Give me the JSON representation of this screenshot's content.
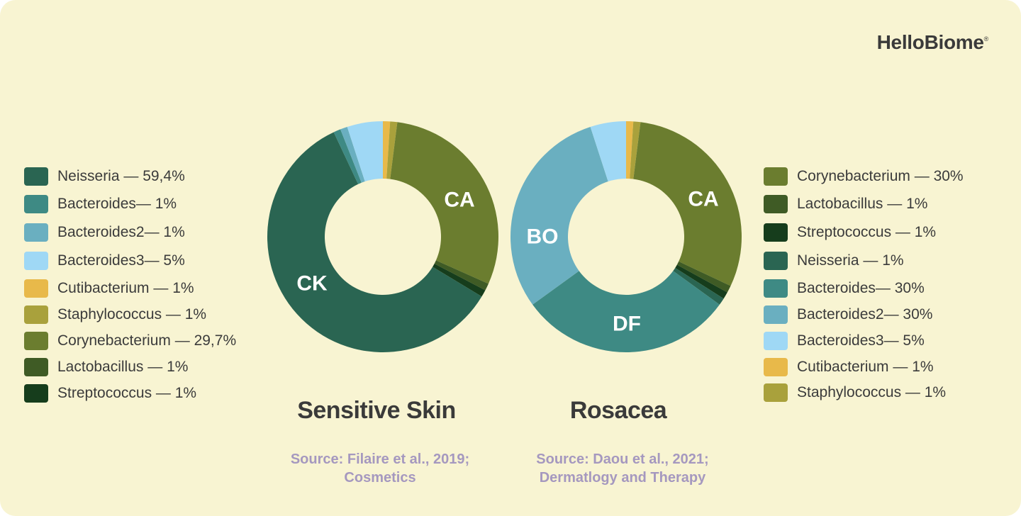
{
  "brand": {
    "name": "HelloBiome",
    "mark": "®"
  },
  "legend_left": [
    {
      "label": "Neisseria — 59,4%",
      "color": "#2a6552"
    },
    {
      "label": "Bacteroides— 1%",
      "color": "#3e8a84"
    },
    {
      "label": "Bacteroides2— 1%",
      "color": "#6aafc0"
    },
    {
      "label": "Bacteroides3— 5%",
      "color": "#9fd8f5"
    },
    {
      "label": "Cutibacterium — 1%",
      "color": "#e8b94a"
    },
    {
      "label": "Staphylococcus  — 1%",
      "color": "#a9a13c"
    },
    {
      "label": "Corynebacterium — 29,7%",
      "color": "#6b7d2f"
    },
    {
      "label": "Lactobacillus — 1%",
      "color": "#3f5b25"
    },
    {
      "label": "Streptococcus — 1%",
      "color": "#163d1c"
    }
  ],
  "legend_right": [
    {
      "label": "Corynebacterium — 30%",
      "color": "#6b7d2f"
    },
    {
      "label": "Lactobacillus — 1%",
      "color": "#3f5b25"
    },
    {
      "label": "Streptococcus — 1%",
      "color": "#163d1c"
    },
    {
      "label": "Neisseria — 1%",
      "color": "#2a6552"
    },
    {
      "label": "Bacteroides— 30%",
      "color": "#3e8a84"
    },
    {
      "label": "Bacteroides2— 30%",
      "color": "#6aafc0"
    },
    {
      "label": "Bacteroides3— 5%",
      "color": "#9fd8f5"
    },
    {
      "label": "Cutibacterium — 1%",
      "color": "#e8b94a"
    },
    {
      "label": "Staphylococcus  — 1%",
      "color": "#a9a13c"
    }
  ],
  "chart_data": [
    {
      "type": "pie",
      "title": "Sensitive Skin",
      "source": [
        "Source: Filaire et al., 2019;",
        "Cosmetics"
      ],
      "slices": [
        {
          "name": "Cutibacterium",
          "value": 1,
          "color": "#e8b94a"
        },
        {
          "name": "Staphylococcus",
          "value": 1,
          "color": "#a9a13c"
        },
        {
          "name": "Corynebacterium",
          "value": 29.7,
          "color": "#6b7d2f",
          "label": "CA"
        },
        {
          "name": "Lactobacillus",
          "value": 1,
          "color": "#3f5b25"
        },
        {
          "name": "Streptococcus",
          "value": 1,
          "color": "#163d1c"
        },
        {
          "name": "Neisseria",
          "value": 59.4,
          "color": "#2a6552",
          "label": "CK"
        },
        {
          "name": "Bacteroides",
          "value": 1,
          "color": "#3e8a84"
        },
        {
          "name": "Bacteroides2",
          "value": 1,
          "color": "#6aafc0"
        },
        {
          "name": "Bacteroides3",
          "value": 5,
          "color": "#9fd8f5"
        }
      ]
    },
    {
      "type": "pie",
      "title": "Rosacea",
      "source": [
        "Source: Daou et al., 2021;",
        "Dermatlogy and Therapy"
      ],
      "slices": [
        {
          "name": "Cutibacterium",
          "value": 1,
          "color": "#e8b94a"
        },
        {
          "name": "Staphylococcus",
          "value": 1,
          "color": "#a9a13c"
        },
        {
          "name": "Corynebacterium",
          "value": 30,
          "color": "#6b7d2f",
          "label": "CA"
        },
        {
          "name": "Lactobacillus",
          "value": 1,
          "color": "#3f5b25"
        },
        {
          "name": "Streptococcus",
          "value": 1,
          "color": "#163d1c"
        },
        {
          "name": "Neisseria",
          "value": 1,
          "color": "#2a6552"
        },
        {
          "name": "Bacteroides",
          "value": 30,
          "color": "#3e8a84",
          "label": "DF"
        },
        {
          "name": "Bacteroides2",
          "value": 30,
          "color": "#6aafc0",
          "label": "BO"
        },
        {
          "name": "Bacteroides3",
          "value": 5,
          "color": "#9fd8f5"
        }
      ]
    }
  ]
}
